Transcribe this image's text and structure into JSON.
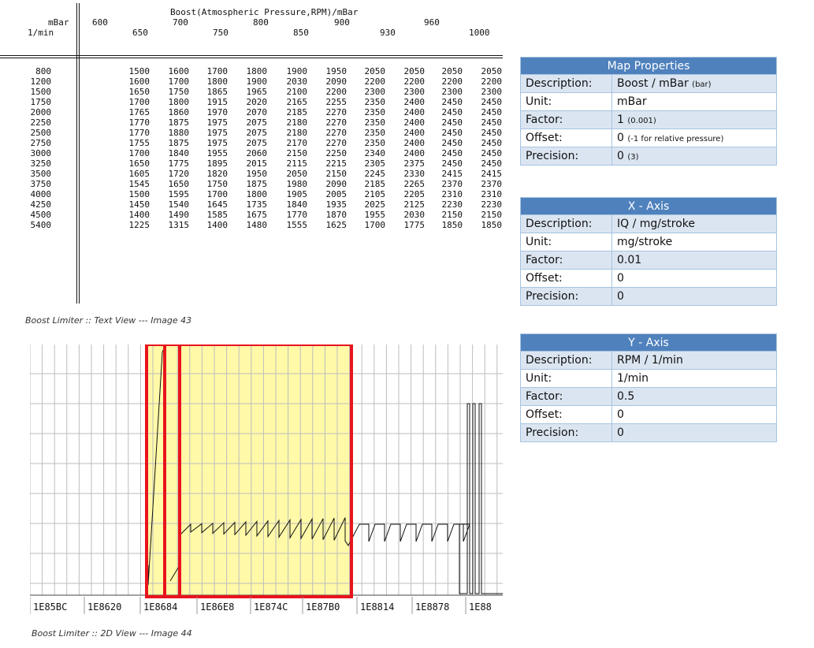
{
  "text_view": {
    "title": "Boost(Atmospheric Pressure,RPM)/mBar",
    "row_unit_label": "mBar",
    "row_axis_label": "1/min",
    "x_top": [
      "600",
      "700",
      "800",
      "900",
      "960"
    ],
    "x_bottom": [
      "650",
      "750",
      "850",
      "930",
      "1000"
    ],
    "rows": [
      {
        "rpm": "800",
        "values": [
          "1500",
          "1600",
          "1700",
          "1800",
          "1900",
          "1950",
          "2050",
          "2050",
          "2050",
          "2050"
        ]
      },
      {
        "rpm": "1200",
        "values": [
          "1600",
          "1700",
          "1800",
          "1900",
          "2030",
          "2090",
          "2200",
          "2200",
          "2200",
          "2200"
        ]
      },
      {
        "rpm": "1500",
        "values": [
          "1650",
          "1750",
          "1865",
          "1965",
          "2100",
          "2200",
          "2300",
          "2300",
          "2300",
          "2300"
        ]
      },
      {
        "rpm": "1750",
        "values": [
          "1700",
          "1800",
          "1915",
          "2020",
          "2165",
          "2255",
          "2350",
          "2400",
          "2450",
          "2450"
        ]
      },
      {
        "rpm": "2000",
        "values": [
          "1765",
          "1860",
          "1970",
          "2070",
          "2185",
          "2270",
          "2350",
          "2400",
          "2450",
          "2450"
        ]
      },
      {
        "rpm": "2250",
        "values": [
          "1770",
          "1875",
          "1975",
          "2075",
          "2180",
          "2270",
          "2350",
          "2400",
          "2450",
          "2450"
        ]
      },
      {
        "rpm": "2500",
        "values": [
          "1770",
          "1880",
          "1975",
          "2075",
          "2180",
          "2270",
          "2350",
          "2400",
          "2450",
          "2450"
        ]
      },
      {
        "rpm": "2750",
        "values": [
          "1755",
          "1875",
          "1975",
          "2075",
          "2170",
          "2270",
          "2350",
          "2400",
          "2450",
          "2450"
        ]
      },
      {
        "rpm": "3000",
        "values": [
          "1700",
          "1840",
          "1955",
          "2060",
          "2150",
          "2250",
          "2340",
          "2400",
          "2450",
          "2450"
        ]
      },
      {
        "rpm": "3250",
        "values": [
          "1650",
          "1775",
          "1895",
          "2015",
          "2115",
          "2215",
          "2305",
          "2375",
          "2450",
          "2450"
        ]
      },
      {
        "rpm": "3500",
        "values": [
          "1605",
          "1720",
          "1820",
          "1950",
          "2050",
          "2150",
          "2245",
          "2330",
          "2415",
          "2415"
        ]
      },
      {
        "rpm": "3750",
        "values": [
          "1545",
          "1650",
          "1750",
          "1875",
          "1980",
          "2090",
          "2185",
          "2265",
          "2370",
          "2370"
        ]
      },
      {
        "rpm": "4000",
        "values": [
          "1500",
          "1595",
          "1700",
          "1800",
          "1905",
          "2005",
          "2105",
          "2205",
          "2310",
          "2310"
        ]
      },
      {
        "rpm": "4250",
        "values": [
          "1450",
          "1540",
          "1645",
          "1735",
          "1840",
          "1935",
          "2025",
          "2125",
          "2230",
          "2230"
        ]
      },
      {
        "rpm": "4500",
        "values": [
          "1400",
          "1490",
          "1585",
          "1675",
          "1770",
          "1870",
          "1955",
          "2030",
          "2150",
          "2150"
        ]
      },
      {
        "rpm": "5400",
        "values": [
          "1225",
          "1315",
          "1400",
          "1480",
          "1555",
          "1625",
          "1700",
          "1775",
          "1850",
          "1850"
        ]
      }
    ],
    "caption": "Boost Limiter :: Text View --- Image 43"
  },
  "hex_view": {
    "addresses": [
      "1E85BC",
      "1E8620",
      "1E8684",
      "1E86E8",
      "1E874C",
      "1E87B0",
      "1E8814",
      "1E8878",
      "1E88"
    ],
    "caption": "Boost Limiter :: 2D View --- Image 44",
    "highlight_color": "#fff9a8",
    "frame_color": "#e8141c"
  },
  "map_properties": {
    "title": "Map Properties",
    "rows": [
      {
        "key": "Description:",
        "value": "Boost / mBar",
        "note": "(bar)"
      },
      {
        "key": "Unit:",
        "value": "mBar",
        "note": ""
      },
      {
        "key": "Factor:",
        "value": "1",
        "note": "(0.001)"
      },
      {
        "key": "Offset:",
        "value": "0",
        "note": "(-1 for relative pressure)"
      },
      {
        "key": "Precision:",
        "value": "0",
        "note": "(3)"
      }
    ]
  },
  "x_axis": {
    "title": "X - Axis",
    "rows": [
      {
        "key": "Description:",
        "value": "IQ / mg/stroke"
      },
      {
        "key": "Unit:",
        "value": "mg/stroke"
      },
      {
        "key": "Factor:",
        "value": "0.01"
      },
      {
        "key": "Offset:",
        "value": "0"
      },
      {
        "key": "Precision:",
        "value": "0"
      }
    ]
  },
  "y_axis": {
    "title": "Y - Axis",
    "rows": [
      {
        "key": "Description:",
        "value": "RPM / 1/min"
      },
      {
        "key": "Unit:",
        "value": "1/min"
      },
      {
        "key": "Factor:",
        "value": "0.5"
      },
      {
        "key": "Offset:",
        "value": "0"
      },
      {
        "key": "Precision:",
        "value": "0"
      }
    ]
  },
  "colors": {
    "header_blue": "#4f81bd",
    "stripe": "#dbe5f1",
    "border": "#a7c4df"
  }
}
